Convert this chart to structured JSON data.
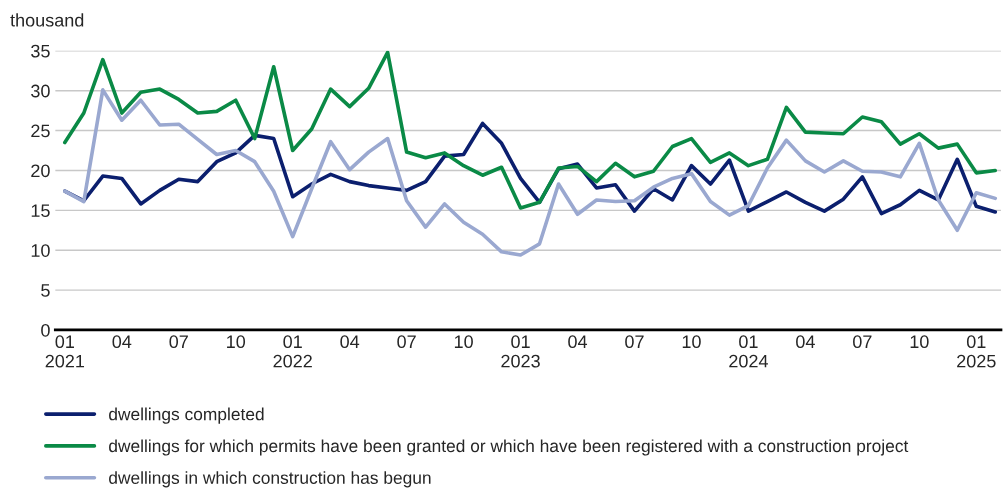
{
  "chart_data": {
    "type": "line",
    "ylabel": "thousand",
    "categories": [
      "01\n2021",
      null,
      null,
      "04",
      null,
      null,
      "07",
      null,
      null,
      "10",
      null,
      null,
      "01\n2022",
      null,
      null,
      "04",
      null,
      null,
      "07",
      null,
      null,
      "10",
      null,
      null,
      "01\n2023",
      null,
      null,
      "04",
      null,
      null,
      "07",
      null,
      null,
      "10",
      null,
      null,
      "01\n2024",
      null,
      null,
      "04",
      null,
      null,
      "07",
      null,
      null,
      "10",
      null,
      null,
      "01\n2025",
      null
    ],
    "series": [
      {
        "name": "dwellings completed",
        "color": "#0b1f6e",
        "values": [
          17.4,
          16.2,
          19.3,
          19.0,
          15.8,
          17.5,
          18.9,
          18.6,
          21.1,
          22.2,
          24.4,
          24.0,
          16.7,
          18.3,
          19.5,
          18.6,
          18.1,
          17.8,
          17.5,
          18.6,
          21.8,
          22.0,
          25.9,
          23.4,
          19.0,
          16.0,
          20.2,
          20.8,
          17.8,
          18.2,
          14.9,
          17.7,
          16.3,
          20.6,
          18.3,
          21.3,
          14.9,
          16.1,
          17.3,
          16.0,
          14.9,
          16.4,
          19.2,
          14.6,
          15.7,
          17.5,
          16.3,
          21.4,
          15.5,
          14.8
        ]
      },
      {
        "name": "dwellings for which permits have been granted or which have been registered with a construction project",
        "color": "#0a8a46",
        "values": [
          23.5,
          27.2,
          33.9,
          27.2,
          29.8,
          30.2,
          28.9,
          27.2,
          27.4,
          28.8,
          24.0,
          33.0,
          22.5,
          25.2,
          30.2,
          28.0,
          30.3,
          34.8,
          22.3,
          21.6,
          22.2,
          20.6,
          19.4,
          20.4,
          15.3,
          16.0,
          20.3,
          20.5,
          18.6,
          20.9,
          19.2,
          19.9,
          23.0,
          24.0,
          21.0,
          22.2,
          20.6,
          21.4,
          27.9,
          24.8,
          24.7,
          24.6,
          26.7,
          26.1,
          23.3,
          24.6,
          22.8,
          23.3,
          19.7,
          20.0
        ]
      },
      {
        "name": "dwellings in which construction has begun",
        "color": "#9aa8d0",
        "values": [
          17.4,
          16.1,
          30.1,
          26.3,
          28.8,
          25.7,
          25.8,
          23.9,
          22.0,
          22.5,
          21.1,
          17.4,
          11.7,
          17.7,
          23.6,
          20.1,
          22.3,
          24.0,
          16.2,
          12.9,
          15.8,
          13.5,
          12.0,
          9.8,
          9.4,
          10.8,
          18.3,
          14.5,
          16.3,
          16.1,
          16.2,
          17.9,
          19.0,
          19.6,
          16.1,
          14.4,
          15.6,
          20.3,
          23.8,
          21.2,
          19.8,
          21.2,
          19.9,
          19.8,
          19.2,
          23.4,
          16.3,
          12.5,
          17.2,
          16.5
        ]
      }
    ],
    "ylim": [
      0,
      35
    ],
    "yticks": [
      0,
      5,
      10,
      15,
      20,
      25,
      30,
      35
    ],
    "grid": "y",
    "legend": "bottom",
    "marker": "none",
    "line_style": "solid"
  }
}
